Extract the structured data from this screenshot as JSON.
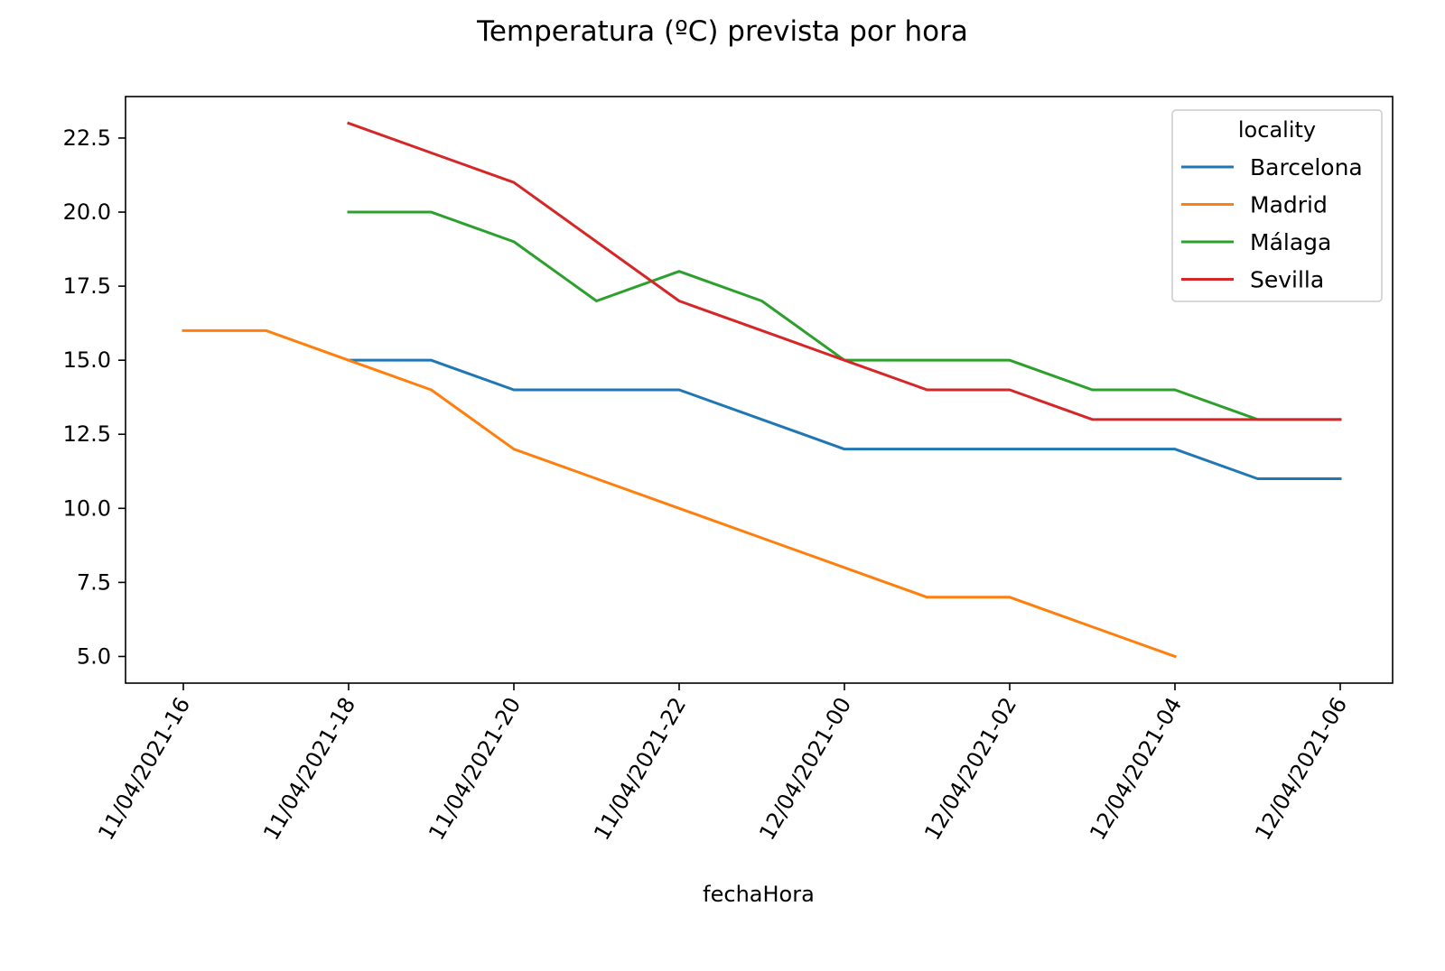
{
  "chart_data": {
    "type": "line",
    "title": "Temperatura (ºC) prevista por hora",
    "xlabel": "fechaHora",
    "ylabel": "",
    "x": [
      "11/04/2021-16",
      "11/04/2021-17",
      "11/04/2021-18",
      "11/04/2021-19",
      "11/04/2021-20",
      "11/04/2021-21",
      "11/04/2021-22",
      "11/04/2021-23",
      "12/04/2021-00",
      "12/04/2021-01",
      "12/04/2021-02",
      "12/04/2021-03",
      "12/04/2021-04",
      "12/04/2021-05",
      "12/04/2021-06"
    ],
    "xticks": [
      "11/04/2021-16",
      "11/04/2021-18",
      "11/04/2021-20",
      "11/04/2021-22",
      "12/04/2021-00",
      "12/04/2021-02",
      "12/04/2021-04",
      "12/04/2021-06"
    ],
    "yticks": [
      "5.0",
      "7.5",
      "10.0",
      "12.5",
      "15.0",
      "17.5",
      "20.0",
      "22.5"
    ],
    "ylim": [
      4.1,
      23.9
    ],
    "grid": false,
    "legend": {
      "title": "locality",
      "position": "top-right"
    },
    "series": [
      {
        "name": "Barcelona",
        "color": "#1f77b4",
        "values": [
          null,
          null,
          15,
          15,
          14,
          14,
          14,
          13,
          12,
          12,
          12,
          12,
          12,
          11,
          11
        ]
      },
      {
        "name": "Madrid",
        "color": "#ff7f0e",
        "values": [
          16,
          16,
          15,
          14,
          12,
          11,
          10,
          9,
          8,
          7,
          7,
          6,
          5,
          null,
          null
        ]
      },
      {
        "name": "Málaga",
        "color": "#2ca02c",
        "values": [
          null,
          null,
          20,
          20,
          19,
          17,
          18,
          17,
          15,
          15,
          15,
          14,
          14,
          13,
          13
        ]
      },
      {
        "name": "Sevilla",
        "color": "#d62728",
        "values": [
          null,
          null,
          23,
          22,
          21,
          19,
          17,
          16,
          15,
          14,
          14,
          13,
          13,
          13,
          13
        ]
      }
    ]
  }
}
